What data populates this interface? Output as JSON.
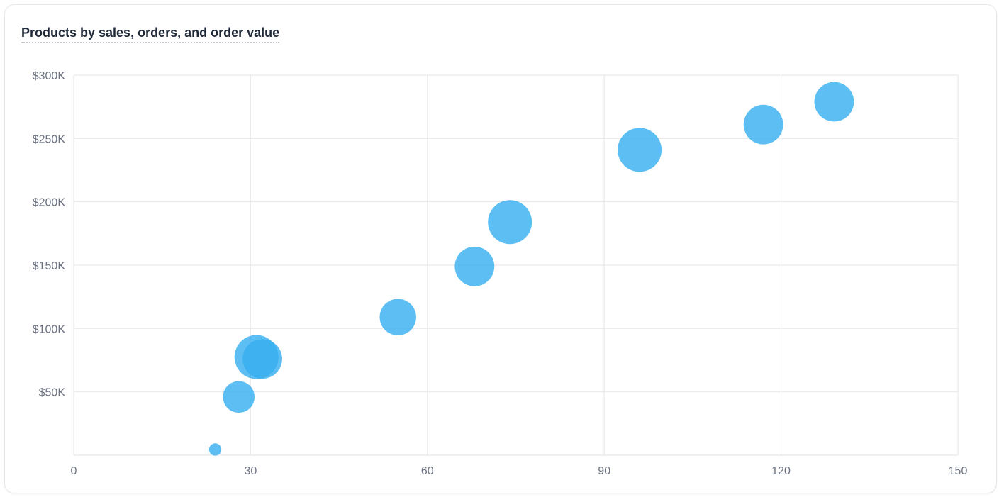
{
  "chart_data": {
    "type": "scatter",
    "title": "Products by sales, orders, and order value",
    "xlabel": "",
    "ylabel": "",
    "xlim": [
      0,
      150
    ],
    "ylim": [
      0,
      300000
    ],
    "x_ticks": [
      0,
      30,
      60,
      90,
      120,
      150
    ],
    "x_tick_labels": [
      "0",
      "30",
      "60",
      "90",
      "120",
      "150"
    ],
    "y_ticks": [
      50000,
      100000,
      150000,
      200000,
      250000,
      300000
    ],
    "y_tick_labels": [
      "$50K",
      "$100K",
      "$150K",
      "$200K",
      "$250K",
      "$300K"
    ],
    "grid": true,
    "legend": "none",
    "color": "#38b0f0",
    "series": [
      {
        "points": [
          {
            "x": 24,
            "y": 4500,
            "size": 0.28
          },
          {
            "x": 28,
            "y": 46000,
            "size": 0.72
          },
          {
            "x": 31,
            "y": 77500,
            "size": 1.0
          },
          {
            "x": 32,
            "y": 76000,
            "size": 0.9
          },
          {
            "x": 55,
            "y": 109000,
            "size": 0.83
          },
          {
            "x": 68,
            "y": 149000,
            "size": 0.9
          },
          {
            "x": 74,
            "y": 184000,
            "size": 1.0
          },
          {
            "x": 96,
            "y": 241000,
            "size": 1.0
          },
          {
            "x": 117,
            "y": 261000,
            "size": 0.9
          },
          {
            "x": 129,
            "y": 279000,
            "size": 0.9
          }
        ]
      }
    ]
  }
}
